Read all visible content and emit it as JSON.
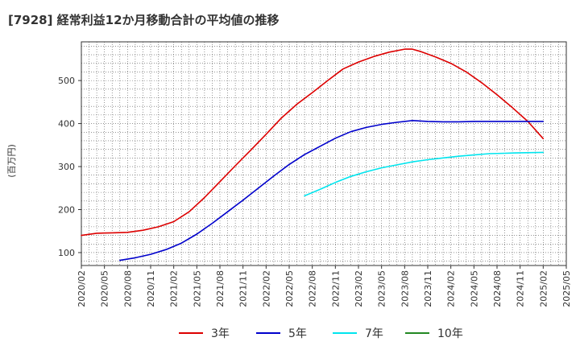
{
  "title": "[7928]  経常利益12か月移動合計の平均値の推移",
  "chart_data": {
    "type": "line",
    "ylabel": "(百万円)",
    "x_ticks": [
      "2020/02",
      "2020/05",
      "2020/08",
      "2020/11",
      "2021/02",
      "2021/05",
      "2021/08",
      "2021/11",
      "2022/02",
      "2022/05",
      "2022/08",
      "2022/11",
      "2023/02",
      "2023/05",
      "2023/08",
      "2023/11",
      "2024/02",
      "2024/05",
      "2024/08",
      "2024/11",
      "2025/02",
      "2025/05"
    ],
    "y_ticks": [
      100,
      200,
      300,
      400,
      500
    ],
    "ylim": [
      70,
      590
    ],
    "grid": true,
    "legend_position": "bottom",
    "series": [
      {
        "name": "3年",
        "color": "#dd0000",
        "points": [
          [
            "2020/02",
            140
          ],
          [
            "2020/04",
            145
          ],
          [
            "2020/06",
            146
          ],
          [
            "2020/08",
            147
          ],
          [
            "2020/10",
            152
          ],
          [
            "2020/12",
            160
          ],
          [
            "2021/02",
            172
          ],
          [
            "2021/04",
            195
          ],
          [
            "2021/06",
            228
          ],
          [
            "2021/08",
            265
          ],
          [
            "2021/10",
            302
          ],
          [
            "2021/12",
            338
          ],
          [
            "2022/02",
            375
          ],
          [
            "2022/04",
            413
          ],
          [
            "2022/06",
            445
          ],
          [
            "2022/08",
            472
          ],
          [
            "2022/10",
            500
          ],
          [
            "2022/12",
            527
          ],
          [
            "2023/02",
            543
          ],
          [
            "2023/04",
            556
          ],
          [
            "2023/06",
            566
          ],
          [
            "2023/08",
            573
          ],
          [
            "2023/09",
            573
          ],
          [
            "2023/10",
            568
          ],
          [
            "2023/12",
            555
          ],
          [
            "2024/02",
            540
          ],
          [
            "2024/04",
            520
          ],
          [
            "2024/06",
            495
          ],
          [
            "2024/08",
            467
          ],
          [
            "2024/10",
            437
          ],
          [
            "2024/12",
            405
          ],
          [
            "2025/02",
            365
          ]
        ]
      },
      {
        "name": "5年",
        "color": "#0000cc",
        "points": [
          [
            "2020/07",
            82
          ],
          [
            "2020/09",
            88
          ],
          [
            "2020/11",
            96
          ],
          [
            "2021/01",
            107
          ],
          [
            "2021/03",
            122
          ],
          [
            "2021/05",
            143
          ],
          [
            "2021/07",
            168
          ],
          [
            "2021/09",
            195
          ],
          [
            "2021/11",
            222
          ],
          [
            "2022/01",
            250
          ],
          [
            "2022/03",
            278
          ],
          [
            "2022/05",
            305
          ],
          [
            "2022/07",
            328
          ],
          [
            "2022/09",
            347
          ],
          [
            "2022/11",
            366
          ],
          [
            "2023/01",
            381
          ],
          [
            "2023/03",
            391
          ],
          [
            "2023/05",
            398
          ],
          [
            "2023/07",
            403
          ],
          [
            "2023/09",
            407
          ],
          [
            "2023/11",
            405
          ],
          [
            "2024/01",
            404
          ],
          [
            "2024/03",
            404
          ],
          [
            "2024/05",
            405
          ],
          [
            "2024/08",
            405
          ],
          [
            "2024/11",
            405
          ],
          [
            "2025/02",
            405
          ]
        ]
      },
      {
        "name": "7年",
        "color": "#00e5ee",
        "points": [
          [
            "2022/07",
            232
          ],
          [
            "2022/09",
            247
          ],
          [
            "2022/11",
            263
          ],
          [
            "2023/01",
            277
          ],
          [
            "2023/03",
            288
          ],
          [
            "2023/05",
            297
          ],
          [
            "2023/07",
            304
          ],
          [
            "2023/09",
            311
          ],
          [
            "2023/11",
            316
          ],
          [
            "2024/01",
            320
          ],
          [
            "2024/03",
            324
          ],
          [
            "2024/05",
            327
          ],
          [
            "2024/07",
            330
          ],
          [
            "2024/09",
            331
          ],
          [
            "2024/11",
            332
          ],
          [
            "2025/02",
            333
          ]
        ]
      },
      {
        "name": "10年",
        "color": "#228822",
        "points": []
      }
    ]
  }
}
